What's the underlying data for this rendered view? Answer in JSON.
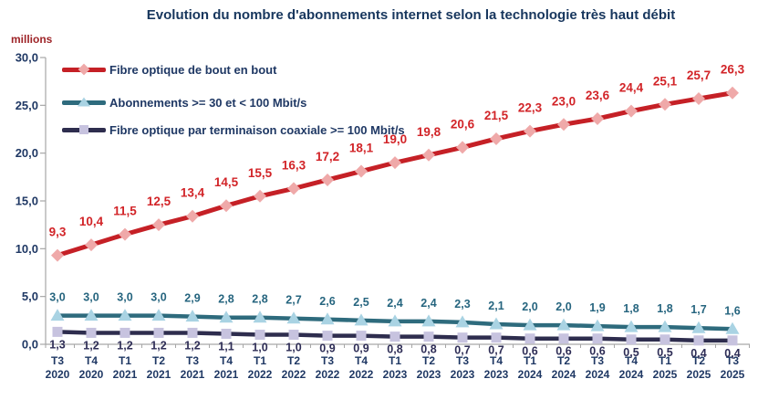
{
  "chart_data": {
    "type": "line",
    "title": "Evolution du nombre d'abonnements internet selon la technologie très haut débit",
    "unit_label": "millions",
    "xlabel": "",
    "ylabel": "millions",
    "ylim": [
      0,
      30
    ],
    "ytick_values": [
      0,
      5,
      10,
      15,
      20,
      25,
      30
    ],
    "ytick_labels": [
      "0,0",
      "5,0",
      "10,0",
      "15,0",
      "20,0",
      "25,0",
      "30,0"
    ],
    "grid": false,
    "legend_position": "top-left-inside",
    "decimal_separator": ",",
    "x_categories": [
      [
        "T3",
        "2020"
      ],
      [
        "T4",
        "2020"
      ],
      [
        "T1",
        "2021"
      ],
      [
        "T2",
        "2021"
      ],
      [
        "T3",
        "2021"
      ],
      [
        "T4",
        "2021"
      ],
      [
        "T1",
        "2022"
      ],
      [
        "T2",
        "2022"
      ],
      [
        "T3",
        "2022"
      ],
      [
        "T4",
        "2022"
      ],
      [
        "T1",
        "2023"
      ],
      [
        "T2",
        "2023"
      ],
      [
        "T3",
        "2023"
      ],
      [
        "T4",
        "2023"
      ],
      [
        "T1",
        "2024"
      ],
      [
        "T2",
        "2024"
      ],
      [
        "T3",
        "2024"
      ],
      [
        "T4",
        "2024"
      ],
      [
        "T1",
        "2025"
      ],
      [
        "T2",
        "2025"
      ],
      [
        "T3",
        "2025"
      ]
    ],
    "series": [
      {
        "name": "Fibre optique de bout en bout",
        "color": "#C52026",
        "marker": "diamond",
        "marker_color": "#EFA9A9",
        "label_color": "#D22428",
        "values": [
          9.3,
          10.4,
          11.5,
          12.5,
          13.4,
          14.5,
          15.5,
          16.3,
          17.2,
          18.1,
          19.0,
          19.8,
          20.6,
          21.5,
          22.3,
          23.0,
          23.6,
          24.4,
          25.1,
          25.7,
          26.3
        ]
      },
      {
        "name": "Abonnements >= 30 et < 100 Mbit/s",
        "color": "#2E6B7D",
        "marker": "triangle",
        "marker_color": "#A9D3E3",
        "label_color": "#26657F",
        "values": [
          3.0,
          3.0,
          3.0,
          3.0,
          2.9,
          2.8,
          2.8,
          2.7,
          2.6,
          2.5,
          2.4,
          2.4,
          2.3,
          2.1,
          2.0,
          2.0,
          1.9,
          1.8,
          1.8,
          1.7,
          1.6
        ]
      },
      {
        "name": "Fibre optique par terminaison coaxiale >= 100 Mbit/s",
        "color": "#2E2D4E",
        "marker": "square",
        "marker_color": "#C7C3DF",
        "label_color": "#2E2D56",
        "values": [
          1.3,
          1.2,
          1.2,
          1.2,
          1.2,
          1.1,
          1.0,
          1.0,
          0.9,
          0.9,
          0.8,
          0.8,
          0.7,
          0.7,
          0.6,
          0.6,
          0.6,
          0.5,
          0.5,
          0.4,
          0.4
        ]
      }
    ],
    "colors": {
      "title": "#17365D",
      "axis_text": "#1F3864",
      "axis_line": "#A6A6A6",
      "unit_label": "#9E2428"
    }
  }
}
